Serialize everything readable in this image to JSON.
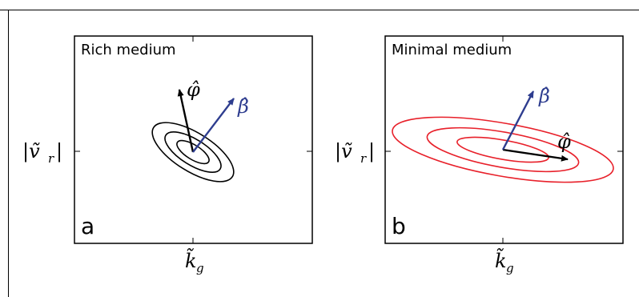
{
  "panels": [
    {
      "id": "a",
      "title": "Rich medium",
      "letter": "a",
      "y_label": "|ṽ",
      "y_label_sub": "r",
      "y_label_end": "|",
      "x_label": "k̃",
      "x_label_sub": "g",
      "phi_label": "φ̂",
      "beta_label": "β̂",
      "ellipse_color": "#000000"
    },
    {
      "id": "b",
      "title": "Minimal medium",
      "letter": "b",
      "y_label": "|ṽ",
      "y_label_sub": "r",
      "y_label_end": "|",
      "x_label": "k̃",
      "x_label_sub": "g",
      "phi_label": "φ̂",
      "beta_label": "β̂",
      "ellipse_color": "#e8202a"
    }
  ],
  "colors": {
    "phi_arrow": "#000000",
    "beta_arrow": "#2e3d8f"
  }
}
